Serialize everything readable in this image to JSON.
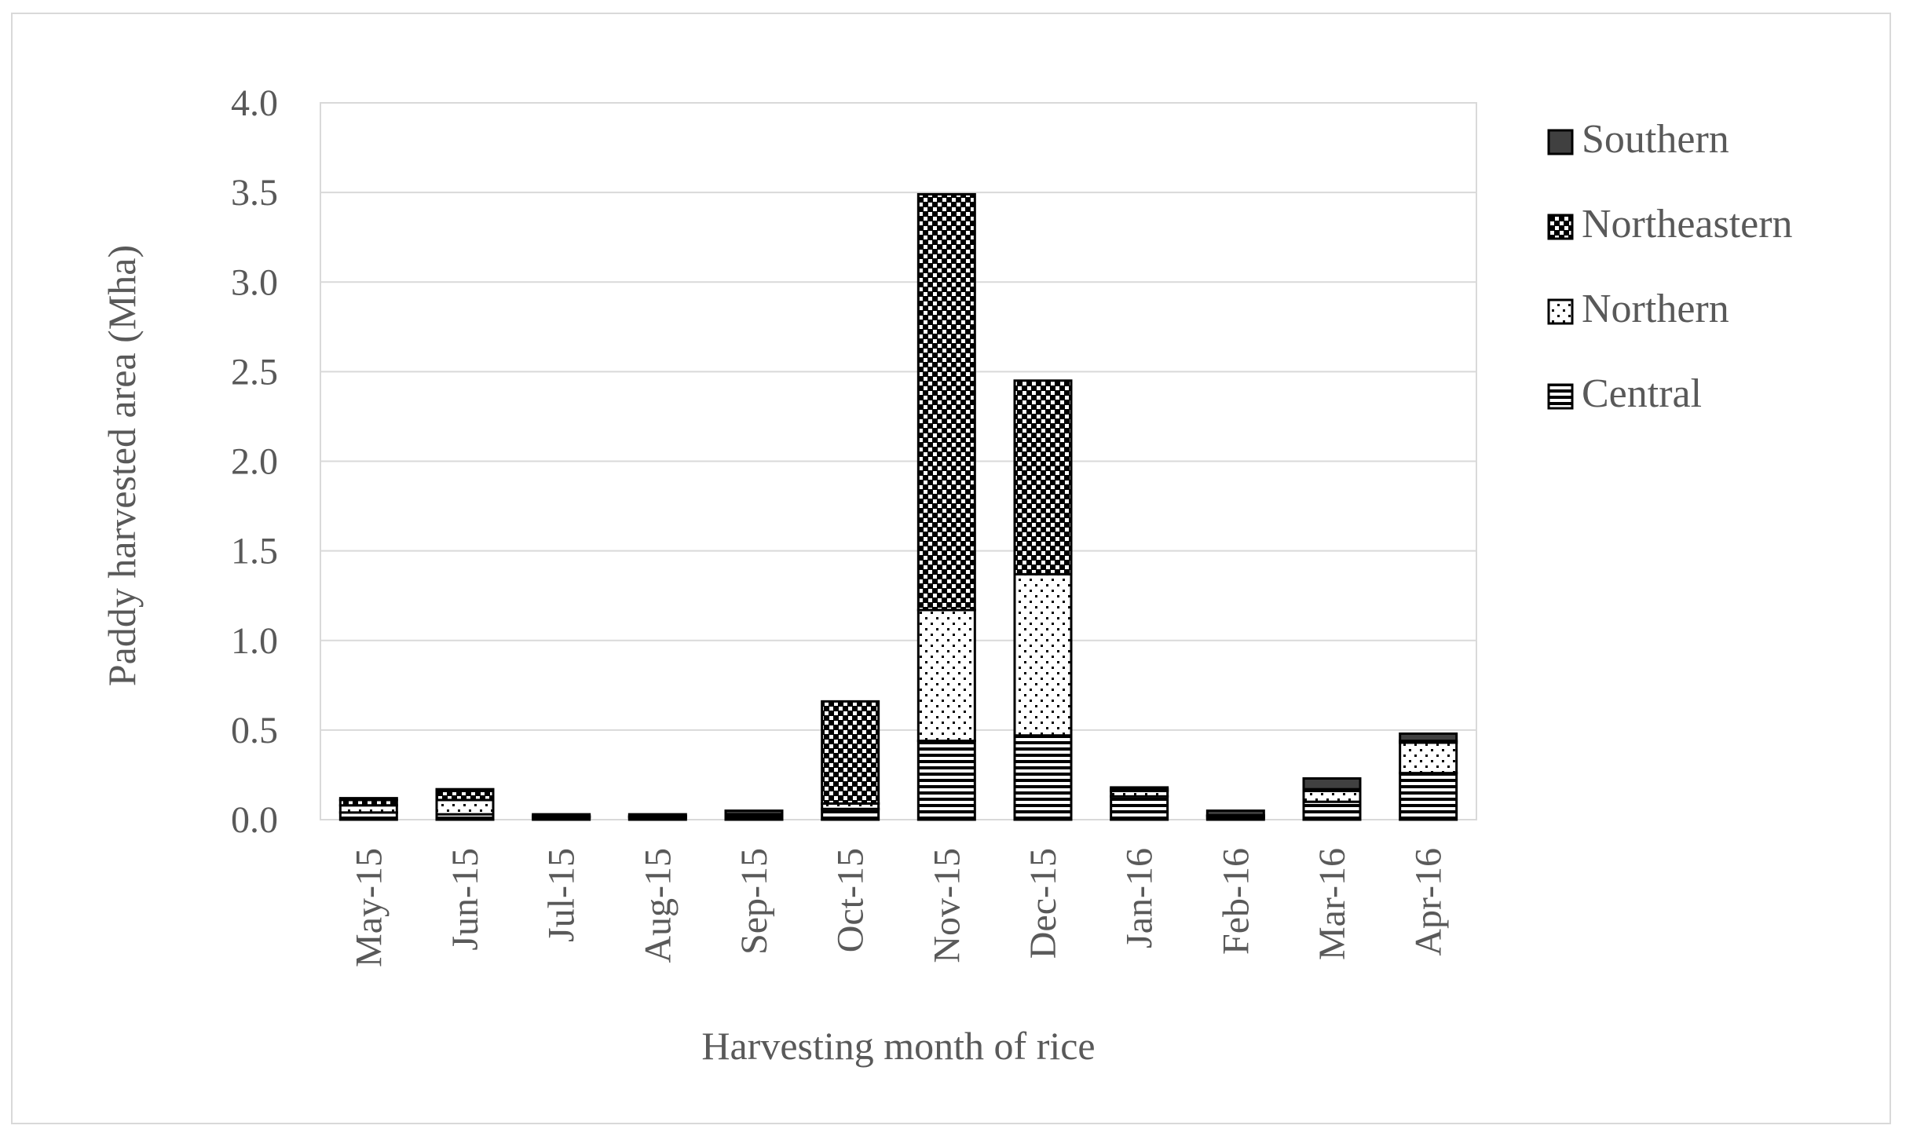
{
  "chart_data": {
    "type": "bar",
    "stacked": true,
    "title": "",
    "xlabel": "Harvesting month of rice",
    "ylabel": "Paddy harvested area (Mha)",
    "ylim": [
      0,
      4.0
    ],
    "ytick_values": [
      0,
      0.5,
      1.0,
      1.5,
      2.0,
      2.5,
      3.0,
      3.5,
      4.0
    ],
    "ytick_labels": [
      "0.0",
      "0.5",
      "1.0",
      "1.5",
      "2.0",
      "2.5",
      "3.0",
      "3.5",
      "4.0"
    ],
    "grid": true,
    "legend_position": "right",
    "categories": [
      "May-15",
      "Jun-15",
      "Jul-15",
      "Aug-15",
      "Sep-15",
      "Oct-15",
      "Nov-15",
      "Dec-15",
      "Jan-16",
      "Feb-16",
      "Mar-16",
      "Apr-16"
    ],
    "series": [
      {
        "name": "Central",
        "pattern": "horizontal-lines",
        "values": [
          0.04,
          0.03,
          0.01,
          0.01,
          0.01,
          0.06,
          0.44,
          0.47,
          0.13,
          0.01,
          0.1,
          0.26
        ]
      },
      {
        "name": "Northern",
        "pattern": "dots",
        "values": [
          0.04,
          0.08,
          0.005,
          0.005,
          0.01,
          0.03,
          0.73,
          0.9,
          0.03,
          0.01,
          0.06,
          0.17
        ]
      },
      {
        "name": "Northeastern",
        "pattern": "checker",
        "values": [
          0.03,
          0.05,
          0.005,
          0.005,
          0.01,
          0.57,
          2.32,
          1.08,
          0.01,
          0.005,
          0.01,
          0.01
        ]
      },
      {
        "name": "Southern",
        "pattern": "solid",
        "values": [
          0.01,
          0.01,
          0.01,
          0.01,
          0.02,
          0.0,
          0.0,
          0.0,
          0.01,
          0.025,
          0.06,
          0.04
        ]
      }
    ],
    "legend_order": [
      "Southern",
      "Northeastern",
      "Northern",
      "Central"
    ]
  },
  "colors": {
    "bar_outline": "#000000",
    "gridline": "#d9d9d9",
    "axis_line": "#d9d9d9",
    "text": "#595959",
    "southern_fill": "#404040",
    "pattern_ink": "#000000",
    "background": "#ffffff"
  }
}
